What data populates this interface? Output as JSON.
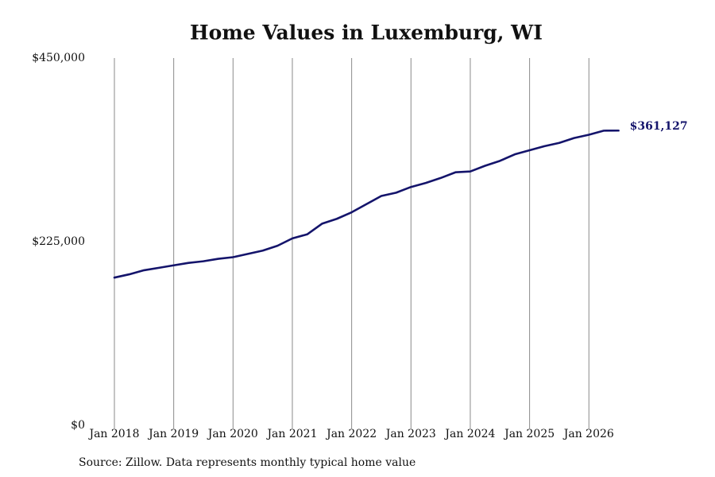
{
  "chart_data": {
    "type": "line",
    "title": "Home Values in Luxemburg, WI",
    "source": "Source: Zillow. Data represents monthly typical home value",
    "x": [
      2018,
      2018.25,
      2018.5,
      2018.75,
      2019,
      2019.25,
      2019.5,
      2019.75,
      2020,
      2020.25,
      2020.5,
      2020.75,
      2021,
      2021.25,
      2021.5,
      2021.75,
      2022,
      2022.25,
      2022.5,
      2022.75,
      2023,
      2023.25,
      2023.5,
      2023.75,
      2024,
      2024.25,
      2024.5,
      2024.75,
      2025,
      2025.25,
      2025.5,
      2025.75,
      2026,
      2026.25,
      2026.5
    ],
    "series": [
      {
        "name": "Home value",
        "color": "#14146b",
        "values": [
          181000,
          185000,
          190000,
          193000,
          196000,
          199000,
          201000,
          204000,
          206000,
          210000,
          214000,
          220000,
          229000,
          234000,
          247000,
          253000,
          261000,
          271000,
          281000,
          285000,
          292000,
          297000,
          303000,
          310000,
          311000,
          318000,
          324000,
          332000,
          337000,
          342000,
          346000,
          352000,
          356000,
          361000,
          361127
        ],
        "value_labels": [
          null,
          null,
          null,
          null,
          null,
          null,
          null,
          null,
          null,
          null,
          null,
          null,
          null,
          null,
          null,
          null,
          null,
          null,
          null,
          null,
          null,
          null,
          null,
          null,
          null,
          null,
          null,
          null,
          null,
          null,
          null,
          null,
          null,
          null,
          "$361,127"
        ]
      }
    ],
    "xlim": [
      2018,
      2026.5
    ],
    "xticks": [
      {
        "value": 2018,
        "label": "Jan 2018"
      },
      {
        "value": 2019,
        "label": "Jan 2019"
      },
      {
        "value": 2020,
        "label": "Jan 2020"
      },
      {
        "value": 2021,
        "label": "Jan 2021"
      },
      {
        "value": 2022,
        "label": "Jan 2022"
      },
      {
        "value": 2023,
        "label": "Jan 2023"
      },
      {
        "value": 2024,
        "label": "Jan 2024"
      },
      {
        "value": 2025,
        "label": "Jan 2025"
      },
      {
        "value": 2026,
        "label": "Jan 2026"
      }
    ],
    "ylim": [
      0,
      450000
    ],
    "yticks": [
      {
        "value": 0,
        "label": "$0"
      },
      {
        "value": 225000,
        "label": "$225,000"
      },
      {
        "value": 450000,
        "label": "$450,000"
      }
    ],
    "grid": "x"
  }
}
